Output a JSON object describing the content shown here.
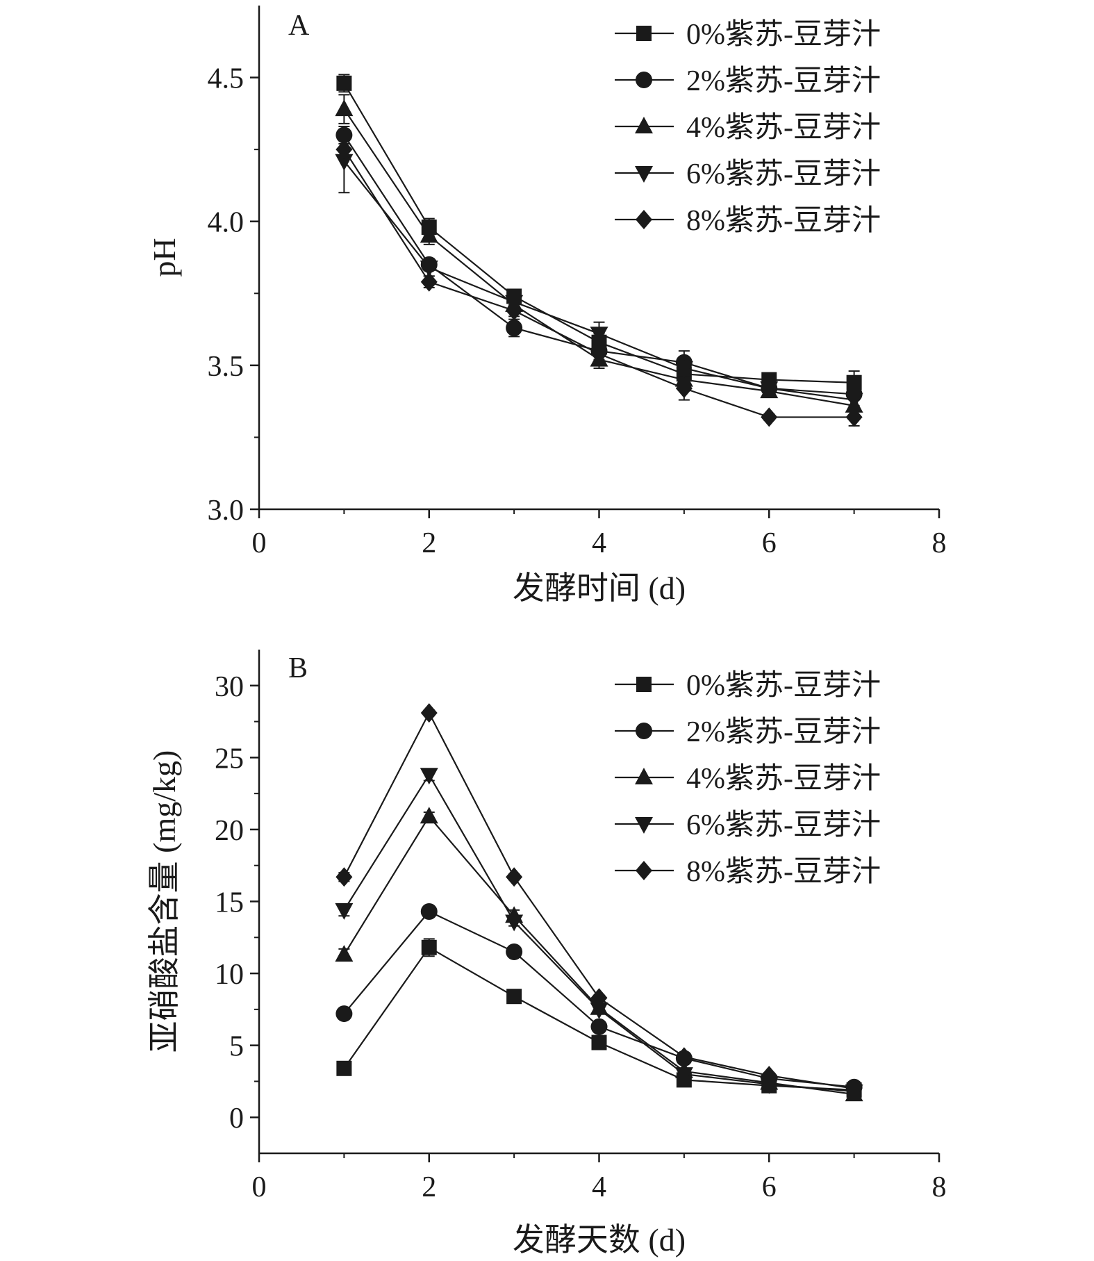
{
  "chart_data": [
    {
      "type": "line",
      "panel_label": "A",
      "xlabel": "发酵时间 (d)",
      "ylabel": "pH",
      "xlim": [
        0,
        8
      ],
      "ylim": [
        3.0,
        4.75
      ],
      "x_ticks": [
        0,
        2,
        4,
        6,
        8
      ],
      "y_ticks": [
        3.0,
        3.5,
        4.0,
        4.5
      ],
      "x_tick_labels": [
        "0",
        "2",
        "4",
        "6",
        "8"
      ],
      "y_tick_labels": [
        "3.0",
        "3.5",
        "4.0",
        "4.5"
      ],
      "grid": false,
      "legend_position": "top-right",
      "x": [
        1,
        2,
        3,
        4,
        5,
        6,
        7
      ],
      "series": [
        {
          "name": "0%紫苏-豆芽汁",
          "marker": "square",
          "values": [
            4.48,
            3.98,
            3.74,
            3.58,
            3.47,
            3.45,
            3.44
          ],
          "errors": [
            0.03,
            0.03,
            0.02,
            0.03,
            0.02,
            0.02,
            0.04
          ]
        },
        {
          "name": "2%紫苏-豆芽汁",
          "marker": "circle",
          "values": [
            4.3,
            3.85,
            3.63,
            3.55,
            3.51,
            3.42,
            3.4
          ],
          "errors": [
            0.03,
            0.02,
            0.03,
            0.02,
            0.04,
            0.02,
            0.02
          ]
        },
        {
          "name": "4%紫苏-豆芽汁",
          "marker": "triangle-up",
          "values": [
            4.39,
            3.95,
            3.71,
            3.52,
            3.45,
            3.41,
            3.36
          ],
          "errors": [
            0.05,
            0.03,
            0.02,
            0.03,
            0.02,
            0.02,
            0.02
          ]
        },
        {
          "name": "6%紫苏-豆芽汁",
          "marker": "triangle-down",
          "values": [
            4.21,
            3.84,
            3.72,
            3.61,
            3.49,
            3.42,
            3.38
          ],
          "errors": [
            0.11,
            0.03,
            0.02,
            0.04,
            0.03,
            0.02,
            0.02
          ]
        },
        {
          "name": "8%紫苏-豆芽汁",
          "marker": "diamond",
          "values": [
            4.25,
            3.79,
            3.69,
            3.54,
            3.42,
            3.32,
            3.32
          ],
          "errors": [
            0.03,
            0.02,
            0.02,
            0.02,
            0.04,
            0.01,
            0.03
          ]
        }
      ]
    },
    {
      "type": "line",
      "panel_label": "B",
      "xlabel": "发酵天数 (d)",
      "ylabel": "亚硝酸盐含量 (mg/kg)",
      "xlim": [
        0,
        8
      ],
      "ylim": [
        -2.5,
        32.5
      ],
      "x_ticks": [
        0,
        2,
        4,
        6,
        8
      ],
      "y_ticks": [
        0,
        5,
        10,
        15,
        20,
        25,
        30
      ],
      "x_tick_labels": [
        "0",
        "2",
        "4",
        "6",
        "8"
      ],
      "y_tick_labels": [
        "0",
        "5",
        "10",
        "15",
        "20",
        "25",
        "30"
      ],
      "grid": false,
      "legend_position": "top-right",
      "x": [
        1,
        2,
        3,
        4,
        5,
        6,
        7
      ],
      "series": [
        {
          "name": "0%紫苏-豆芽汁",
          "marker": "square",
          "values": [
            3.4,
            11.8,
            8.4,
            5.2,
            2.6,
            2.2,
            1.9
          ],
          "errors": [
            0.2,
            0.6,
            0.2,
            0.2,
            0.2,
            0.1,
            0.1
          ]
        },
        {
          "name": "2%紫苏-豆芽汁",
          "marker": "circle",
          "values": [
            7.2,
            14.3,
            11.5,
            6.3,
            4.1,
            2.7,
            2.1
          ],
          "errors": [
            0.2,
            0.2,
            0.2,
            0.3,
            0.2,
            0.1,
            0.1
          ]
        },
        {
          "name": "4%紫苏-豆芽汁",
          "marker": "triangle-up",
          "values": [
            11.3,
            20.9,
            14.0,
            7.6,
            3.2,
            2.4,
            1.6
          ],
          "errors": [
            0.4,
            0.3,
            0.4,
            0.3,
            0.2,
            0.1,
            0.2
          ]
        },
        {
          "name": "6%紫苏-豆芽汁",
          "marker": "triangle-down",
          "values": [
            14.4,
            23.8,
            13.6,
            7.5,
            3.0,
            2.3,
            1.8
          ],
          "errors": [
            0.4,
            0.4,
            0.3,
            0.3,
            0.2,
            0.1,
            0.1
          ]
        },
        {
          "name": "8%紫苏-豆芽汁",
          "marker": "diamond",
          "values": [
            16.7,
            28.1,
            16.7,
            8.3,
            4.2,
            2.9,
            2.0
          ],
          "errors": [
            0.3,
            0.2,
            0.2,
            0.2,
            0.2,
            0.1,
            0.1
          ]
        }
      ]
    }
  ],
  "colors": {
    "ink": "#1a1a1a",
    "background": "#ffffff"
  }
}
